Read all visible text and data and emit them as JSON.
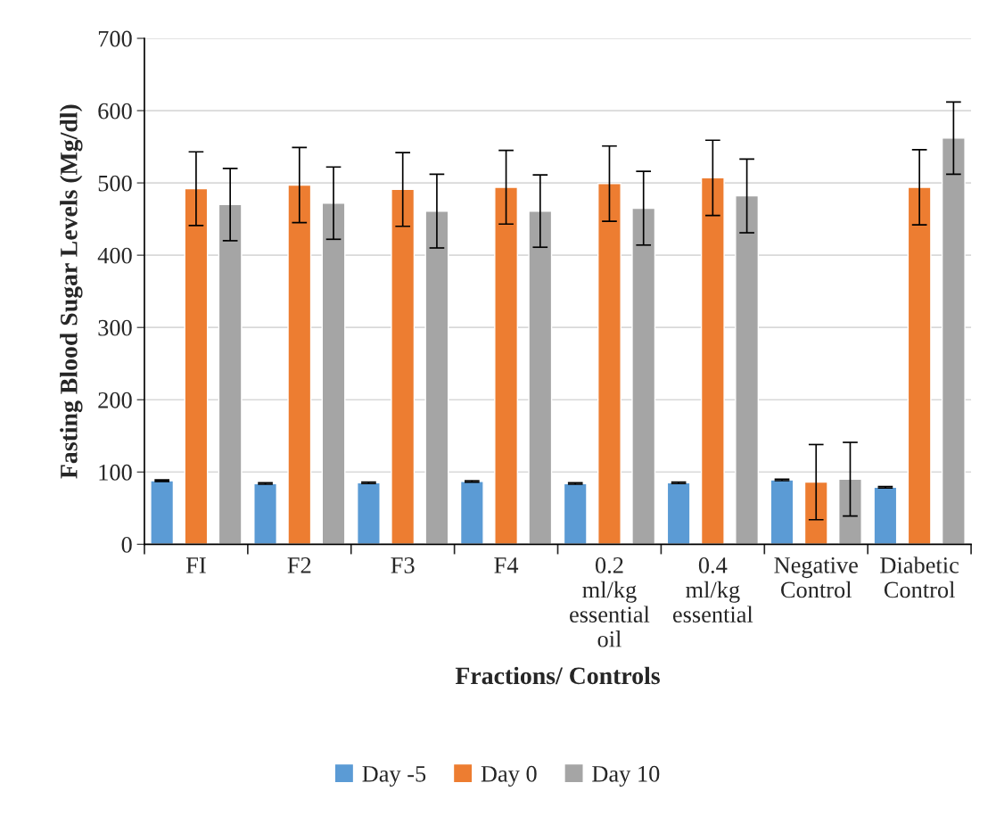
{
  "chart_data": {
    "type": "bar",
    "categories": [
      "FI",
      "F2",
      "F3",
      "F4",
      "0.2 ml/kg essential oil",
      "0.4 ml/kg essential",
      "Negative Control",
      "Diabetic Control"
    ],
    "series": [
      {
        "name": "Day -5",
        "color": "#5b9bd5",
        "values": [
          88,
          84,
          85,
          87,
          84,
          85,
          89,
          79
        ],
        "errors": [
          1,
          1,
          1,
          1,
          1,
          1,
          1,
          1
        ]
      },
      {
        "name": "Day 0",
        "color": "#ed7d31",
        "values": [
          492,
          497,
          491,
          494,
          499,
          507,
          86,
          494
        ],
        "errors": [
          51,
          52,
          51,
          51,
          52,
          52,
          52,
          52
        ]
      },
      {
        "name": "Day 10",
        "color": "#a5a5a5",
        "values": [
          470,
          472,
          461,
          461,
          465,
          482,
          90,
          562
        ],
        "errors": [
          50,
          50,
          51,
          50,
          51,
          51,
          51,
          50
        ]
      }
    ],
    "xlabel": "Fractions/ Controls",
    "ylabel": "Fasting Blood Sugar Levels (Mg/dl)",
    "ylim": [
      0,
      700
    ],
    "yticks": [
      0,
      100,
      200,
      300,
      400,
      500,
      600,
      700
    ],
    "grid": "y",
    "legend": "bottom"
  }
}
